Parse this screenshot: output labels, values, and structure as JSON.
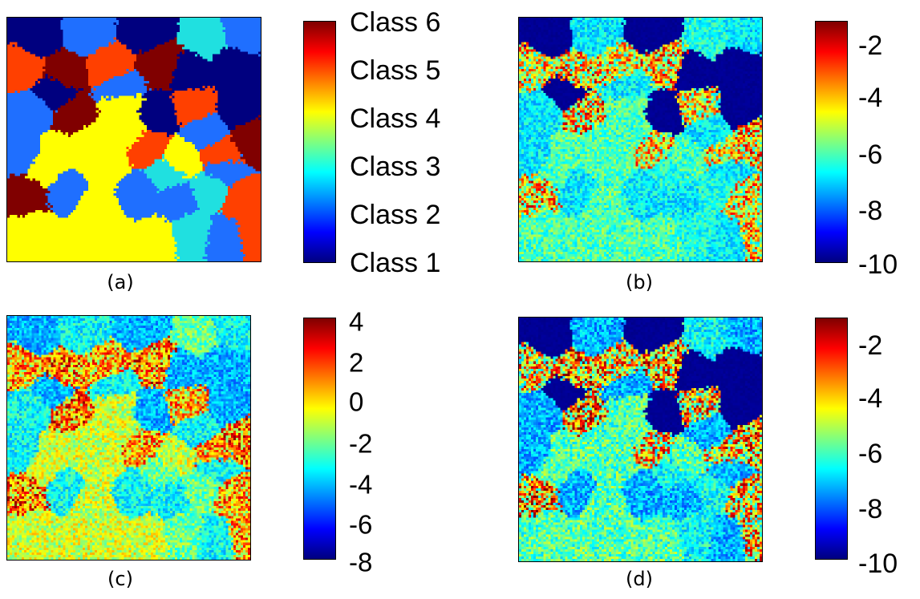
{
  "chart_data": [
    {
      "type": "heatmap",
      "caption": "(a)",
      "colormap": "jet",
      "discrete": true,
      "colorbar_ticks": [
        "Class 1",
        "Class 2",
        "Class 3",
        "Class 4",
        "Class 5",
        "Class 6"
      ],
      "class_colors": [
        "#00007f",
        "#1f6fff",
        "#20e0e0",
        "#ffff00",
        "#ff4000",
        "#800000"
      ]
    },
    {
      "type": "heatmap",
      "caption": "(b)",
      "colormap": "jet",
      "clim": [
        -10,
        -1
      ],
      "colorbar_ticks": [
        "-2",
        "-4",
        "-6",
        "-8",
        "-10"
      ],
      "colorbar_tick_values": [
        -2,
        -4,
        -6,
        -8,
        -10
      ]
    },
    {
      "type": "heatmap",
      "caption": "(c)",
      "colormap": "jet",
      "clim": [
        -8,
        4
      ],
      "colorbar_ticks": [
        "4",
        "2",
        "0",
        "-2",
        "-4",
        "-6",
        "-8"
      ],
      "colorbar_tick_values": [
        4,
        2,
        0,
        -2,
        -4,
        -6,
        -8
      ]
    },
    {
      "type": "heatmap",
      "caption": "(d)",
      "colormap": "jet",
      "clim": [
        -10,
        -1
      ],
      "colorbar_ticks": [
        "-2",
        "-4",
        "-6",
        "-8",
        "-10"
      ],
      "colorbar_tick_values": [
        -2,
        -4,
        -6,
        -8,
        -10
      ]
    }
  ]
}
